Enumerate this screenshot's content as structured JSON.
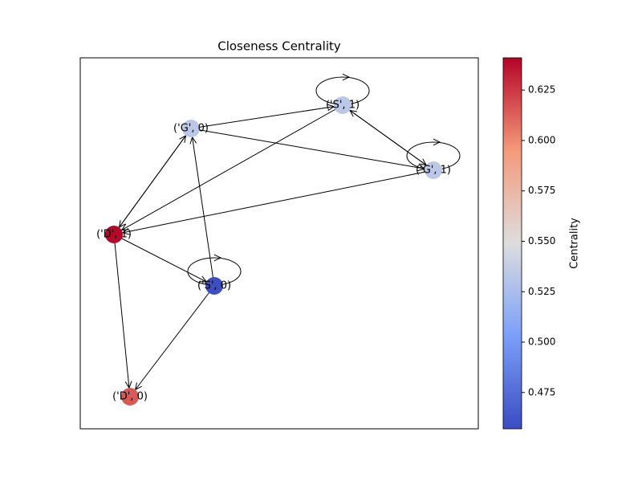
{
  "title": "Closeness Centrality",
  "nodes": [
    {
      "label": "('G', 0)",
      "value": 0.533
    },
    {
      "label": "('S', 1)",
      "value": 0.533
    },
    {
      "label": "('G', 1)",
      "value": 0.533
    },
    {
      "label": "('D', 1)",
      "value": 0.64
    },
    {
      "label": "('S', 0)",
      "value": 0.458
    },
    {
      "label": "('D', 0)",
      "value": 0.615
    }
  ],
  "edges": [
    [
      0,
      1
    ],
    [
      0,
      2
    ],
    [
      1,
      2
    ],
    [
      2,
      1
    ],
    [
      1,
      3
    ],
    [
      2,
      3
    ],
    [
      3,
      0
    ],
    [
      0,
      3
    ],
    [
      3,
      4
    ],
    [
      3,
      5
    ],
    [
      4,
      0
    ],
    [
      4,
      5
    ],
    [
      1,
      1
    ],
    [
      2,
      2
    ],
    [
      4,
      4
    ]
  ],
  "colorbar": {
    "label": "Centrality",
    "colormap": "coolwarm",
    "lim": [
      0.457,
      0.641
    ],
    "ticks": [
      0.475,
      {
        "value": 0.5,
        "label": "0.500"
      },
      0.525,
      {
        "value": 0.55,
        "label": "0.550"
      },
      0.575,
      {
        "value": 0.6,
        "label": "0.600"
      },
      0.625
    ]
  }
}
